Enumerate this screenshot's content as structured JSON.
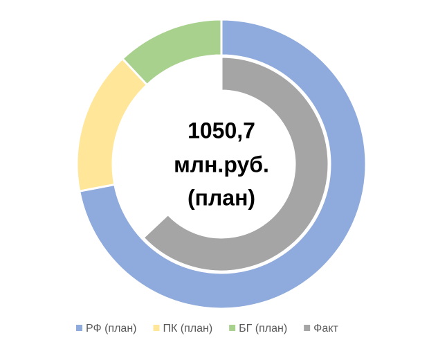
{
  "chart_data": {
    "type": "doughnut",
    "center_text": [
      "1050,7",
      "млн.руб.",
      "(план)"
    ],
    "rings": [
      {
        "labels": [
          "РФ (план)",
          "ПК (план)",
          "БГ (план)"
        ],
        "values": [
          72,
          16,
          12
        ],
        "colors": [
          "#8faadc",
          "#ffe699",
          "#a9d18e"
        ]
      },
      {
        "labels": [
          "Факт",
          null
        ],
        "values": [
          63,
          37
        ],
        "colors": [
          "#a5a5a5",
          "#ffffff"
        ]
      }
    ]
  }
}
